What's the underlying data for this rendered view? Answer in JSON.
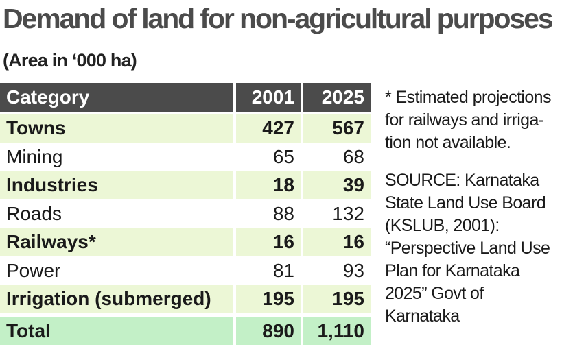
{
  "title": "Demand of land for non-agricultural purposes",
  "subtitle": "(Area in ‘000 ha)",
  "note": "* Estimated projections for railways and irriga- tion not available.",
  "source": "SOURCE: Karnataka State Land Use Board (KSLUB, 2001): “Perspective Land Use Plan for Karnataka 2025” Govt of Karnataka",
  "chart_data": {
    "type": "table",
    "title": "Demand of land for non-agricultural purposes",
    "subtitle": "(Area in ‘000 ha)",
    "columns": [
      "Category",
      "2001",
      "2025"
    ],
    "rows": [
      {
        "category": "Towns",
        "y2001": "427",
        "y2025": "567",
        "highlight": true
      },
      {
        "category": "Mining",
        "y2001": "65",
        "y2025": "68",
        "highlight": false
      },
      {
        "category": "Industries",
        "y2001": "18",
        "y2025": "39",
        "highlight": true
      },
      {
        "category": "Roads",
        "y2001": "88",
        "y2025": "132",
        "highlight": false
      },
      {
        "category": "Railways*",
        "y2001": "16",
        "y2025": "16",
        "highlight": true
      },
      {
        "category": "Power",
        "y2001": "81",
        "y2025": "93",
        "highlight": false
      },
      {
        "category": "Irrigation (submerged)",
        "y2001": "195",
        "y2025": "195",
        "highlight": true
      }
    ],
    "total": {
      "category": "Total",
      "y2001": "890",
      "y2025": "1,110"
    }
  },
  "colors": {
    "header_bg": "#4b4b4b",
    "highlight_row": "#ecf7d6",
    "total_row": "#c3f0c7"
  }
}
